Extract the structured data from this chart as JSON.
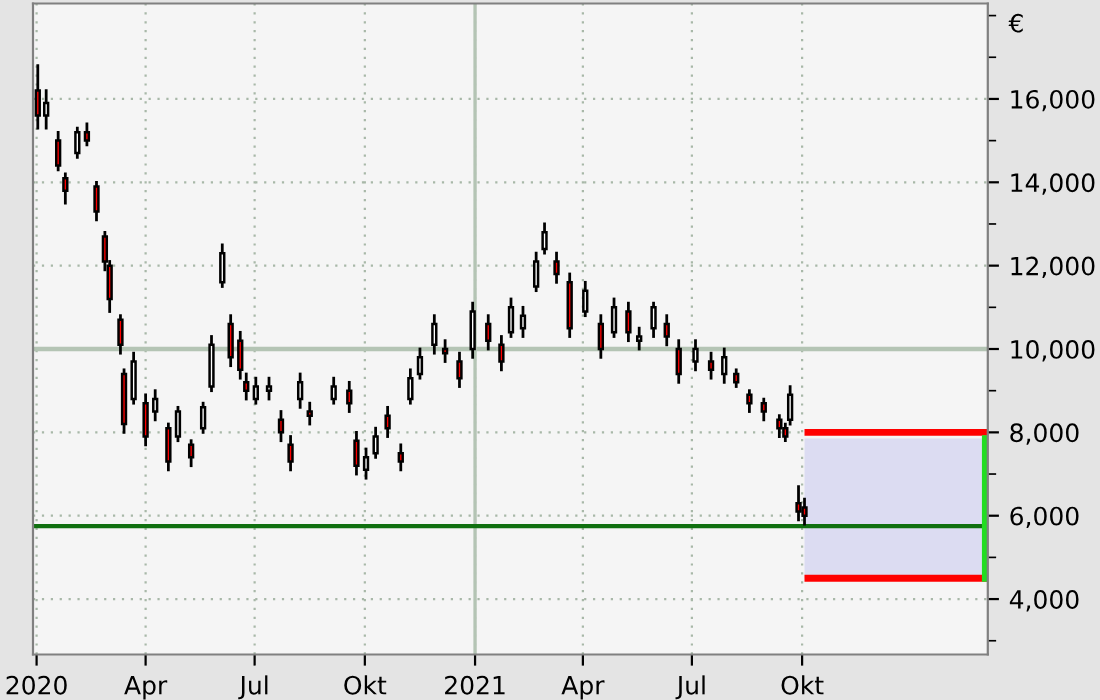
{
  "chart_data": {
    "type": "candlestick",
    "ylabel": "€",
    "x": [
      "2020-01-02",
      "2020-01-09",
      "2020-01-19",
      "2020-01-25",
      "2020-02-04",
      "2020-02-12",
      "2020-02-20",
      "2020-02-27",
      "2020-03-02",
      "2020-03-11",
      "2020-03-14",
      "2020-03-22",
      "2020-04-01",
      "2020-04-09",
      "2020-04-20",
      "2020-04-28",
      "2020-05-09",
      "2020-05-19",
      "2020-05-26",
      "2020-06-04",
      "2020-06-11",
      "2020-06-19",
      "2020-06-24",
      "2020-07-02",
      "2020-07-13",
      "2020-07-23",
      "2020-07-31",
      "2020-08-08",
      "2020-08-16",
      "2020-09-05",
      "2020-09-18",
      "2020-09-24",
      "2020-10-02",
      "2020-10-10",
      "2020-10-20",
      "2020-10-31",
      "2020-11-08",
      "2020-11-16",
      "2020-11-28",
      "2020-12-07",
      "2020-12-19",
      "2020-12-30",
      "2021-01-12",
      "2021-01-23",
      "2021-01-31",
      "2021-02-10",
      "2021-02-21",
      "2021-02-28",
      "2021-03-10",
      "2021-03-21",
      "2021-04-03",
      "2021-04-16",
      "2021-04-27",
      "2021-05-09",
      "2021-05-18",
      "2021-05-30",
      "2021-06-10",
      "2021-06-20",
      "2021-07-04",
      "2021-07-17",
      "2021-07-28",
      "2021-08-07",
      "2021-08-18",
      "2021-08-30",
      "2021-09-12",
      "2021-09-17",
      "2021-09-21",
      "2021-09-28",
      "2021-10-03"
    ],
    "ohlc": [
      [
        16200,
        16800,
        15300,
        15600
      ],
      [
        15600,
        16200,
        15300,
        15900
      ],
      [
        15000,
        15200,
        14300,
        14400
      ],
      [
        14100,
        14200,
        13500,
        13800
      ],
      [
        14700,
        15300,
        14600,
        15200
      ],
      [
        15200,
        15400,
        14900,
        15000
      ],
      [
        13900,
        14000,
        13100,
        13300
      ],
      [
        12700,
        12800,
        11900,
        12100
      ],
      [
        12000,
        12100,
        10900,
        11200
      ],
      [
        10700,
        10800,
        9900,
        10100
      ],
      [
        9400,
        9500,
        8000,
        8200
      ],
      [
        8800,
        9900,
        8700,
        9700
      ],
      [
        8700,
        8900,
        7700,
        7900
      ],
      [
        8500,
        9000,
        8300,
        8800
      ],
      [
        8100,
        8200,
        7100,
        7300
      ],
      [
        7900,
        8600,
        7800,
        8500
      ],
      [
        7700,
        7800,
        7200,
        7400
      ],
      [
        8100,
        8700,
        8000,
        8600
      ],
      [
        9100,
        10300,
        9000,
        10100
      ],
      [
        11600,
        12500,
        11500,
        12300
      ],
      [
        10600,
        10800,
        9600,
        9800
      ],
      [
        10200,
        10400,
        9300,
        9500
      ],
      [
        9200,
        9400,
        8800,
        9000
      ],
      [
        8800,
        9300,
        8700,
        9100
      ],
      [
        9000,
        9300,
        8800,
        9100
      ],
      [
        8300,
        8500,
        7800,
        8000
      ],
      [
        7700,
        7900,
        7100,
        7300
      ],
      [
        8800,
        9400,
        8600,
        9200
      ],
      [
        8500,
        8700,
        8200,
        8400
      ],
      [
        8800,
        9300,
        8700,
        9100
      ],
      [
        9000,
        9200,
        8500,
        8700
      ],
      [
        7800,
        8000,
        7000,
        7200
      ],
      [
        7100,
        7600,
        6900,
        7400
      ],
      [
        7500,
        8100,
        7400,
        7900
      ],
      [
        8400,
        8600,
        7900,
        8100
      ],
      [
        7500,
        7700,
        7100,
        7300
      ],
      [
        8800,
        9500,
        8700,
        9300
      ],
      [
        9400,
        10000,
        9300,
        9800
      ],
      [
        10100,
        10800,
        9900,
        10600
      ],
      [
        10000,
        10200,
        9700,
        9900
      ],
      [
        9700,
        9900,
        9100,
        9300
      ],
      [
        10000,
        11100,
        9800,
        10900
      ],
      [
        10600,
        10800,
        10000,
        10200
      ],
      [
        10100,
        10300,
        9500,
        9700
      ],
      [
        10400,
        11200,
        10300,
        11000
      ],
      [
        10500,
        11000,
        10300,
        10800
      ],
      [
        11500,
        12300,
        11400,
        12100
      ],
      [
        12400,
        13000,
        12300,
        12800
      ],
      [
        12100,
        12300,
        11600,
        11800
      ],
      [
        11600,
        11800,
        10300,
        10500
      ],
      [
        10900,
        11600,
        10800,
        11400
      ],
      [
        10600,
        10800,
        9800,
        10000
      ],
      [
        10400,
        11200,
        10300,
        11000
      ],
      [
        10900,
        11100,
        10200,
        10400
      ],
      [
        10200,
        10500,
        10000,
        10300
      ],
      [
        10500,
        11100,
        10300,
        11000
      ],
      [
        10600,
        10800,
        10100,
        10300
      ],
      [
        10000,
        10200,
        9200,
        9400
      ],
      [
        9700,
        10200,
        9500,
        10000
      ],
      [
        9700,
        9900,
        9300,
        9500
      ],
      [
        9400,
        10000,
        9200,
        9800
      ],
      [
        9400,
        9500,
        9100,
        9200
      ],
      [
        8900,
        9000,
        8500,
        8700
      ],
      [
        8700,
        8800,
        8300,
        8500
      ],
      [
        8300,
        8400,
        7900,
        8100
      ],
      [
        8100,
        8200,
        7800,
        7900
      ],
      [
        8300,
        9100,
        8200,
        8900
      ],
      [
        6300,
        6700,
        5900,
        6100
      ],
      [
        6200,
        6400,
        5800,
        6000
      ]
    ],
    "colors": [
      "#ff0000",
      "#ffffff",
      "#ff0000",
      "#ff0000",
      "#ffffff",
      "#ff0000",
      "#ff0000",
      "#ff0000",
      "#ff0000",
      "#ff0000",
      "#ff0000",
      "#ffffff",
      "#ff0000",
      "#ffffff",
      "#ff0000",
      "#ffffff",
      "#ff0000",
      "#ffffff",
      "#ffffff",
      "#ffffff",
      "#ff0000",
      "#ff0000",
      "#ff0000",
      "#ffffff",
      "#ffffff",
      "#ff0000",
      "#ff0000",
      "#ffffff",
      "#ff0000",
      "#ffffff",
      "#ff0000",
      "#ff0000",
      "#ffffff",
      "#ffffff",
      "#ff0000",
      "#ff0000",
      "#ffffff",
      "#ffffff",
      "#ffffff",
      "#ff0000",
      "#ff0000",
      "#ffffff",
      "#ff0000",
      "#ff0000",
      "#ffffff",
      "#ffffff",
      "#ffffff",
      "#ffffff",
      "#ff0000",
      "#ff0000",
      "#ffffff",
      "#ff0000",
      "#ffffff",
      "#ff0000",
      "#ffffff",
      "#ffffff",
      "#ff0000",
      "#ff0000",
      "#ffffff",
      "#ff0000",
      "#ffffff",
      "#ff0000",
      "#ff0000",
      "#ff0000",
      "#ff0000",
      "#ff0000",
      "#ffffff",
      "#ff0000",
      "#ff0000"
    ],
    "xlim": [
      "2019-12-29",
      "2022-03-05"
    ],
    "xticks": [
      {
        "value": "2020-01-01",
        "label": "2020"
      },
      {
        "value": "2020-04-01",
        "label": "Apr"
      },
      {
        "value": "2020-07-01",
        "label": "Jul"
      },
      {
        "value": "2020-10-01",
        "label": "Okt"
      },
      {
        "value": "2021-01-01",
        "label": "2021"
      },
      {
        "value": "2021-04-01",
        "label": "Apr"
      },
      {
        "value": "2021-07-01",
        "label": "Jul"
      },
      {
        "value": "2021-10-01",
        "label": "Okt"
      }
    ],
    "ylim": [
      2670,
      18290
    ],
    "yticks": [
      {
        "value": 3000,
        "label": null
      },
      {
        "value": 4000,
        "label": "4,000"
      },
      {
        "value": 5000,
        "label": null
      },
      {
        "value": 6000,
        "label": "6,000"
      },
      {
        "value": 7000,
        "label": null
      },
      {
        "value": 8000,
        "label": "8,000"
      },
      {
        "value": 9000,
        "label": null
      },
      {
        "value": 10000,
        "label": "10,000"
      },
      {
        "value": 11000,
        "label": null
      },
      {
        "value": 12000,
        "label": "12,000"
      },
      {
        "value": 13000,
        "label": null
      },
      {
        "value": 14000,
        "label": "14,000"
      },
      {
        "value": 15000,
        "label": null
      },
      {
        "value": 16000,
        "label": "16,000"
      },
      {
        "value": 17000,
        "label": null
      },
      {
        "value": 18000,
        "label": null
      }
    ],
    "grid": true,
    "ref_lines": [
      {
        "axis": "y",
        "value": 10000,
        "color": "#b4c4b4"
      },
      {
        "axis": "x",
        "value": "2021-01-01",
        "color": "#b4c4b4"
      },
      {
        "axis": "y",
        "value": 5750,
        "color": "#107010"
      },
      {
        "axis": "y",
        "value": 8000,
        "color": "#ff0000"
      },
      {
        "axis": "y",
        "value": 4500,
        "color": "#ff0000"
      },
      {
        "axis": "x",
        "value": "2022-03-03",
        "color": "#22dd22"
      }
    ],
    "bands": [
      {
        "axis": "y",
        "from": 4500,
        "to": 7850,
        "color": "#dcdcf2"
      }
    ]
  }
}
